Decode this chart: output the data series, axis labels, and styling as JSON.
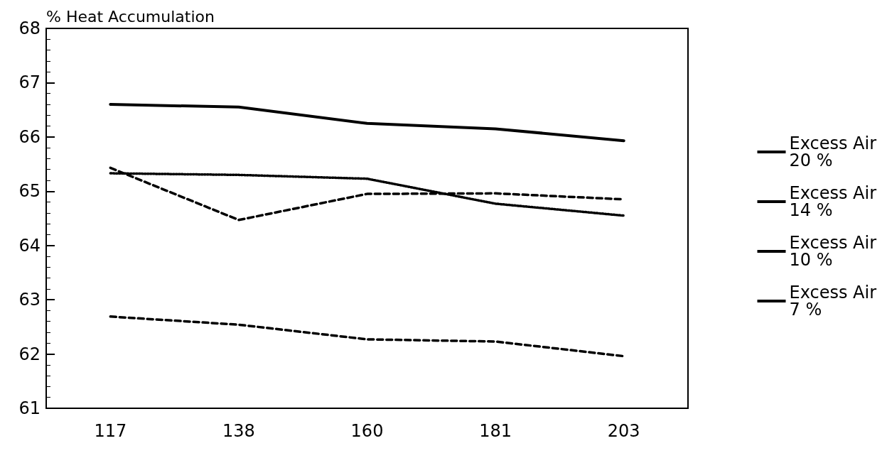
{
  "chart_data": {
    "type": "line",
    "ylabel": "% Heat Accumulation",
    "categories": [
      "117",
      "138",
      "160",
      "181",
      "203"
    ],
    "ylim": [
      61,
      68
    ],
    "yticks": [
      61,
      62,
      63,
      64,
      65,
      66,
      67,
      68
    ],
    "grid": false,
    "legend": "right",
    "marker": "none",
    "series": [
      {
        "name": "Excess Air\n20 %",
        "color": "#000000",
        "line_style": "dashed",
        "values": [
          62.69,
          62.54,
          62.27,
          62.23,
          61.96
        ]
      },
      {
        "name": "Excess Air\n14 %",
        "color": "#000000",
        "line_style": "dotted",
        "values": [
          65.33,
          65.3,
          65.23,
          64.77,
          64.55
        ]
      },
      {
        "name": "Excess Air\n10 %",
        "color": "#000000",
        "line_style": "dashed",
        "values": [
          65.43,
          64.47,
          64.95,
          64.96,
          64.85
        ]
      },
      {
        "name": "Excess Air\n7 %",
        "color": "#000000",
        "line_style": "solid",
        "values": [
          66.6,
          66.55,
          66.25,
          66.15,
          65.93
        ]
      }
    ]
  }
}
